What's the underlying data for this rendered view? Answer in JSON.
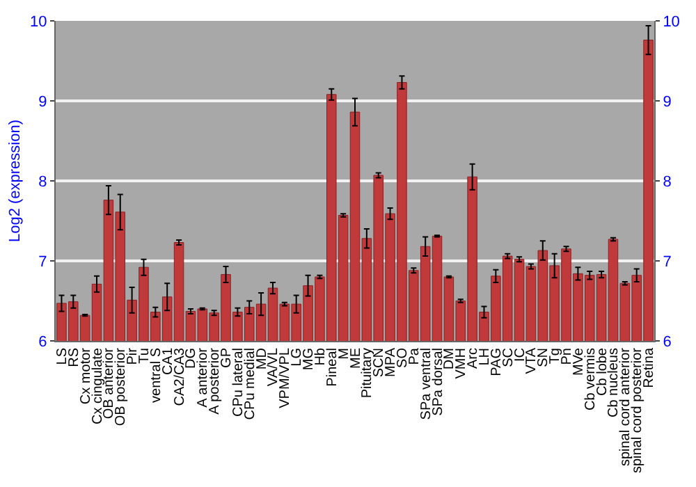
{
  "chart_data": {
    "type": "bar",
    "ylabel": "Log2 (expression)",
    "categories": [
      "LS",
      "RS",
      "Cx motor",
      "Cx cingulate",
      "OB anterior",
      "OB posterior",
      "Pir",
      "Tu",
      "ventral S",
      "CA1",
      "CA2/CA3",
      "DG",
      "A anterior",
      "A posterior",
      "GP",
      "CPu lateral",
      "CPu medial",
      "MD",
      "VA/VL",
      "VPM/VPL",
      "LG",
      "MG",
      "Hb",
      "Pineal",
      "M",
      "ME",
      "Pituitary",
      "SCN",
      "MPA",
      "SO",
      "Pa",
      "SPa ventral",
      "SPa dorsal",
      "DM",
      "VMH",
      "Arc",
      "LH",
      "PAG",
      "SC",
      "IC",
      "VTA",
      "SN",
      "Tg",
      "Pn",
      "MVe",
      "Cb vermis",
      "Cb lobe",
      "Cb nucleus",
      "spinal cord anterior",
      "spinal cord posterior",
      "Retina"
    ],
    "values": [
      6.47,
      6.49,
      6.32,
      6.71,
      7.76,
      7.61,
      6.51,
      6.92,
      6.36,
      6.55,
      7.23,
      6.37,
      6.4,
      6.35,
      6.83,
      6.36,
      6.42,
      6.46,
      6.66,
      6.46,
      6.46,
      6.69,
      6.8,
      9.08,
      7.57,
      8.86,
      7.28,
      8.07,
      7.59,
      9.23,
      6.88,
      7.18,
      7.31,
      6.8,
      6.5,
      8.05,
      6.36,
      6.81,
      7.06,
      7.02,
      6.93,
      7.13,
      6.94,
      7.15,
      6.84,
      6.82,
      6.83,
      7.27,
      6.72,
      6.82,
      9.76
    ],
    "errors": [
      0.1,
      0.08,
      0.01,
      0.1,
      0.18,
      0.22,
      0.16,
      0.1,
      0.06,
      0.17,
      0.03,
      0.03,
      0.01,
      0.03,
      0.1,
      0.05,
      0.08,
      0.14,
      0.07,
      0.02,
      0.11,
      0.13,
      0.02,
      0.07,
      0.02,
      0.17,
      0.12,
      0.03,
      0.07,
      0.08,
      0.03,
      0.12,
      0.01,
      0.01,
      0.02,
      0.16,
      0.07,
      0.08,
      0.03,
      0.03,
      0.03,
      0.12,
      0.15,
      0.03,
      0.08,
      0.05,
      0.04,
      0.02,
      0.02,
      0.08,
      0.18
    ],
    "color": "#c0393b",
    "ylim": [
      6,
      10
    ],
    "yticks": [
      6,
      7,
      8,
      9,
      10
    ],
    "y2lim": [
      6,
      10
    ],
    "y2ticks": [
      6,
      7,
      8,
      9,
      10
    ],
    "grid": "y"
  }
}
